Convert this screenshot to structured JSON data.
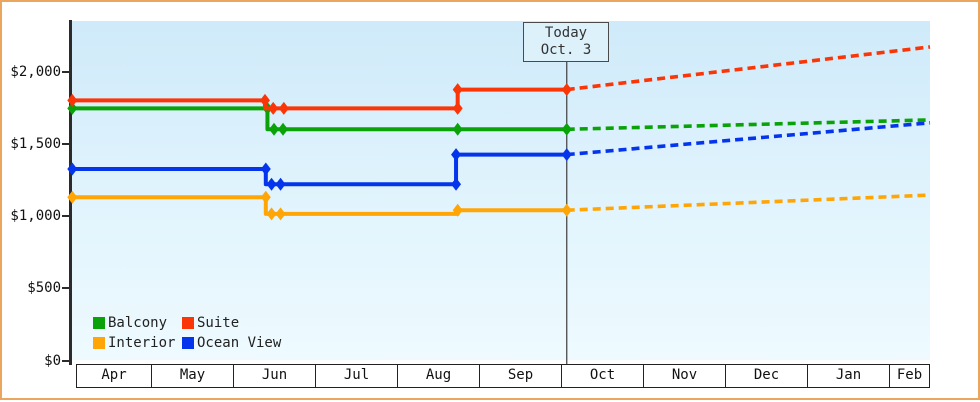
{
  "window": {
    "frame_color": "#eaa55f",
    "background": "#ffffff"
  },
  "today_box": {
    "line1": "Today",
    "line2": "Oct. 3"
  },
  "colors": {
    "plot_bg_top": "#cfeafa",
    "plot_bg_bottom": "#eefaff",
    "axis": "#2b2b2b",
    "today_line": "#4a4a4a",
    "box_bg": "#ddf1fb",
    "box_border": "#4a4a4a",
    "text": "#111111"
  },
  "chart_data": {
    "type": "line",
    "title": "",
    "xlabel": "",
    "ylabel": "",
    "y_axis": {
      "ticks": [
        {
          "label": "$0",
          "value": 0
        },
        {
          "label": "$500",
          "value": 500
        },
        {
          "label": "$1,000",
          "value": 1000
        },
        {
          "label": "$1,500",
          "value": 1500
        },
        {
          "label": "$2,000",
          "value": 2000
        }
      ],
      "ylim": [
        0,
        2350
      ],
      "grid": false
    },
    "x_axis": {
      "months": [
        "Apr",
        "May",
        "Jun",
        "Jul",
        "Aug",
        "Sep",
        "Oct",
        "Nov",
        "Dec",
        "Jan",
        "Feb"
      ]
    },
    "today": {
      "label": "Today",
      "date": "Oct. 3",
      "m": 6.07
    },
    "series": [
      {
        "name": "Balcony",
        "color": "#09a309",
        "history": [
          {
            "m": 0.04,
            "price": 1745,
            "marker": true
          },
          {
            "m": 2.42,
            "price": 1745,
            "marker": true
          },
          {
            "m": 2.42,
            "price": 1600,
            "marker": false
          },
          {
            "m": 2.5,
            "price": 1600,
            "marker": true
          },
          {
            "m": 2.61,
            "price": 1600,
            "marker": true
          },
          {
            "m": 4.74,
            "price": 1600,
            "marker": true
          },
          {
            "m": 6.07,
            "price": 1600,
            "marker": true
          }
        ],
        "forecast": [
          {
            "m": 6.07,
            "price": 1600
          },
          {
            "m": 10.5,
            "price": 1665
          }
        ]
      },
      {
        "name": "Suite",
        "color": "#fa3508",
        "history": [
          {
            "m": 0.04,
            "price": 1800,
            "marker": true
          },
          {
            "m": 2.39,
            "price": 1800,
            "marker": true
          },
          {
            "m": 2.39,
            "price": 1745,
            "marker": false
          },
          {
            "m": 2.49,
            "price": 1745,
            "marker": true
          },
          {
            "m": 2.62,
            "price": 1745,
            "marker": true
          },
          {
            "m": 4.74,
            "price": 1745,
            "marker": true
          },
          {
            "m": 4.74,
            "price": 1875,
            "marker": true
          },
          {
            "m": 6.07,
            "price": 1875,
            "marker": true
          }
        ],
        "forecast": [
          {
            "m": 6.07,
            "price": 1875
          },
          {
            "m": 10.5,
            "price": 2170
          }
        ]
      },
      {
        "name": "Interior",
        "color": "#ffa505",
        "history": [
          {
            "m": 0.04,
            "price": 1130,
            "marker": true
          },
          {
            "m": 2.4,
            "price": 1130,
            "marker": true
          },
          {
            "m": 2.4,
            "price": 1015,
            "marker": false
          },
          {
            "m": 2.47,
            "price": 1015,
            "marker": true
          },
          {
            "m": 2.58,
            "price": 1015,
            "marker": true
          },
          {
            "m": 4.74,
            "price": 1015,
            "marker": false
          },
          {
            "m": 4.74,
            "price": 1040,
            "marker": true
          },
          {
            "m": 6.07,
            "price": 1040,
            "marker": true
          }
        ],
        "forecast": [
          {
            "m": 6.07,
            "price": 1040
          },
          {
            "m": 10.5,
            "price": 1145
          }
        ]
      },
      {
        "name": "Ocean View",
        "color": "#0435ec",
        "history": [
          {
            "m": 0.04,
            "price": 1325,
            "marker": true
          },
          {
            "m": 2.4,
            "price": 1325,
            "marker": true
          },
          {
            "m": 2.4,
            "price": 1220,
            "marker": false
          },
          {
            "m": 2.47,
            "price": 1220,
            "marker": true
          },
          {
            "m": 2.58,
            "price": 1220,
            "marker": true
          },
          {
            "m": 4.72,
            "price": 1220,
            "marker": true
          },
          {
            "m": 4.72,
            "price": 1425,
            "marker": true
          },
          {
            "m": 6.07,
            "price": 1425,
            "marker": true
          }
        ],
        "forecast": [
          {
            "m": 6.07,
            "price": 1425
          },
          {
            "m": 10.5,
            "price": 1645
          }
        ]
      }
    ],
    "legend": {
      "position": "bottom-left",
      "rows": [
        [
          "Balcony",
          "Suite"
        ],
        [
          "Interior",
          "Ocean View"
        ]
      ]
    }
  }
}
